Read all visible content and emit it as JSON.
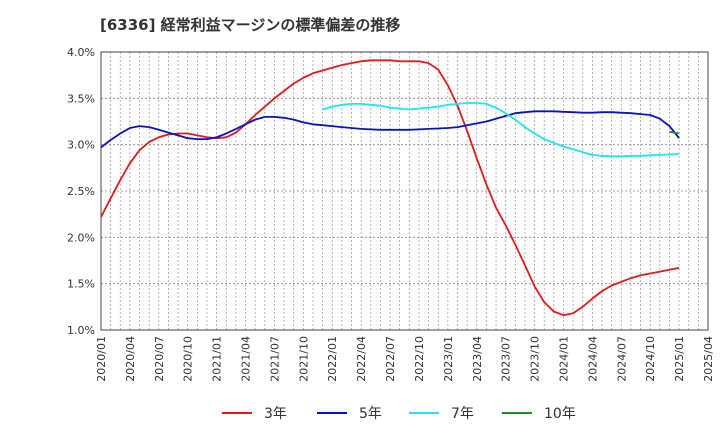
{
  "chart_data": {
    "type": "line",
    "title": "[6336]  経常利益マージンの標準偏差の推移",
    "xlabel": "",
    "ylabel": "",
    "ylim": [
      1.0,
      4.0
    ],
    "y_ticks": [
      "1.0%",
      "1.5%",
      "2.0%",
      "2.5%",
      "3.0%",
      "3.5%",
      "4.0%"
    ],
    "y_tick_values": [
      1.0,
      1.5,
      2.0,
      2.5,
      3.0,
      3.5,
      4.0
    ],
    "x_ticks": [
      "2020/01",
      "2020/04",
      "2020/07",
      "2020/10",
      "2021/01",
      "2021/04",
      "2021/07",
      "2021/10",
      "2022/01",
      "2022/04",
      "2022/07",
      "2022/10",
      "2023/01",
      "2023/04",
      "2023/07",
      "2023/10",
      "2024/01",
      "2024/04",
      "2024/07",
      "2024/10",
      "2025/01",
      "2025/04"
    ],
    "x_start": "2020/01",
    "x_end": "2025/04",
    "grid": true,
    "legend_position": "bottom",
    "series": [
      {
        "name": "3年",
        "color": "#e31a1c",
        "points": [
          [
            "2020/01",
            2.22
          ],
          [
            "2020/02",
            2.42
          ],
          [
            "2020/03",
            2.62
          ],
          [
            "2020/04",
            2.8
          ],
          [
            "2020/05",
            2.94
          ],
          [
            "2020/06",
            3.03
          ],
          [
            "2020/07",
            3.08
          ],
          [
            "2020/08",
            3.11
          ],
          [
            "2020/09",
            3.12
          ],
          [
            "2020/10",
            3.12
          ],
          [
            "2020/11",
            3.1
          ],
          [
            "2020/12",
            3.08
          ],
          [
            "2021/01",
            3.07
          ],
          [
            "2021/02",
            3.08
          ],
          [
            "2021/03",
            3.13
          ],
          [
            "2021/04",
            3.22
          ],
          [
            "2021/05",
            3.32
          ],
          [
            "2021/06",
            3.41
          ],
          [
            "2021/07",
            3.5
          ],
          [
            "2021/08",
            3.58
          ],
          [
            "2021/09",
            3.66
          ],
          [
            "2021/10",
            3.72
          ],
          [
            "2021/11",
            3.77
          ],
          [
            "2021/12",
            3.8
          ],
          [
            "2022/01",
            3.83
          ],
          [
            "2022/02",
            3.86
          ],
          [
            "2022/03",
            3.88
          ],
          [
            "2022/04",
            3.9
          ],
          [
            "2022/05",
            3.91
          ],
          [
            "2022/06",
            3.91
          ],
          [
            "2022/07",
            3.91
          ],
          [
            "2022/08",
            3.9
          ],
          [
            "2022/09",
            3.9
          ],
          [
            "2022/10",
            3.9
          ],
          [
            "2022/11",
            3.88
          ],
          [
            "2022/12",
            3.81
          ],
          [
            "2023/01",
            3.64
          ],
          [
            "2023/02",
            3.42
          ],
          [
            "2023/03",
            3.15
          ],
          [
            "2023/04",
            2.85
          ],
          [
            "2023/05",
            2.57
          ],
          [
            "2023/06",
            2.32
          ],
          [
            "2023/07",
            2.13
          ],
          [
            "2023/08",
            1.92
          ],
          [
            "2023/09",
            1.7
          ],
          [
            "2023/10",
            1.47
          ],
          [
            "2023/11",
            1.3
          ],
          [
            "2023/12",
            1.2
          ],
          [
            "2024/01",
            1.16
          ],
          [
            "2024/02",
            1.18
          ],
          [
            "2024/03",
            1.25
          ],
          [
            "2024/04",
            1.34
          ],
          [
            "2024/05",
            1.42
          ],
          [
            "2024/06",
            1.48
          ],
          [
            "2024/07",
            1.52
          ],
          [
            "2024/08",
            1.56
          ],
          [
            "2024/09",
            1.59
          ],
          [
            "2024/10",
            1.61
          ],
          [
            "2024/11",
            1.63
          ],
          [
            "2024/12",
            1.65
          ],
          [
            "2025/01",
            1.67
          ]
        ]
      },
      {
        "name": "5年",
        "color": "#0a10c8",
        "points": [
          [
            "2020/01",
            2.97
          ],
          [
            "2020/02",
            3.05
          ],
          [
            "2020/03",
            3.12
          ],
          [
            "2020/04",
            3.18
          ],
          [
            "2020/05",
            3.2
          ],
          [
            "2020/06",
            3.19
          ],
          [
            "2020/07",
            3.16
          ],
          [
            "2020/08",
            3.13
          ],
          [
            "2020/09",
            3.1
          ],
          [
            "2020/10",
            3.07
          ],
          [
            "2020/11",
            3.06
          ],
          [
            "2020/12",
            3.06
          ],
          [
            "2021/01",
            3.08
          ],
          [
            "2021/02",
            3.12
          ],
          [
            "2021/03",
            3.17
          ],
          [
            "2021/04",
            3.22
          ],
          [
            "2021/05",
            3.27
          ],
          [
            "2021/06",
            3.3
          ],
          [
            "2021/07",
            3.3
          ],
          [
            "2021/08",
            3.29
          ],
          [
            "2021/09",
            3.27
          ],
          [
            "2021/10",
            3.24
          ],
          [
            "2021/11",
            3.22
          ],
          [
            "2021/12",
            3.21
          ],
          [
            "2022/01",
            3.2
          ],
          [
            "2022/02",
            3.19
          ],
          [
            "2022/03",
            3.18
          ],
          [
            "2022/04",
            3.17
          ],
          [
            "2022/05",
            3.165
          ],
          [
            "2022/06",
            3.16
          ],
          [
            "2022/07",
            3.16
          ],
          [
            "2022/08",
            3.16
          ],
          [
            "2022/09",
            3.16
          ],
          [
            "2022/10",
            3.165
          ],
          [
            "2022/11",
            3.17
          ],
          [
            "2022/12",
            3.175
          ],
          [
            "2023/01",
            3.18
          ],
          [
            "2023/02",
            3.19
          ],
          [
            "2023/03",
            3.21
          ],
          [
            "2023/04",
            3.23
          ],
          [
            "2023/05",
            3.25
          ],
          [
            "2023/06",
            3.28
          ],
          [
            "2023/07",
            3.31
          ],
          [
            "2023/08",
            3.34
          ],
          [
            "2023/09",
            3.35
          ],
          [
            "2023/10",
            3.36
          ],
          [
            "2023/11",
            3.36
          ],
          [
            "2023/12",
            3.36
          ],
          [
            "2024/01",
            3.355
          ],
          [
            "2024/02",
            3.35
          ],
          [
            "2024/03",
            3.345
          ],
          [
            "2024/04",
            3.345
          ],
          [
            "2024/05",
            3.35
          ],
          [
            "2024/06",
            3.35
          ],
          [
            "2024/07",
            3.345
          ],
          [
            "2024/08",
            3.34
          ],
          [
            "2024/09",
            3.33
          ],
          [
            "2024/10",
            3.32
          ],
          [
            "2024/11",
            3.28
          ],
          [
            "2024/12",
            3.2
          ],
          [
            "2025/01",
            3.07
          ]
        ]
      },
      {
        "name": "7年",
        "color": "#19e8f0",
        "points": [
          [
            "2021/12",
            3.38
          ],
          [
            "2022/01",
            3.41
          ],
          [
            "2022/02",
            3.43
          ],
          [
            "2022/03",
            3.44
          ],
          [
            "2022/04",
            3.44
          ],
          [
            "2022/05",
            3.43
          ],
          [
            "2022/06",
            3.42
          ],
          [
            "2022/07",
            3.4
          ],
          [
            "2022/08",
            3.39
          ],
          [
            "2022/09",
            3.38
          ],
          [
            "2022/10",
            3.39
          ],
          [
            "2022/11",
            3.4
          ],
          [
            "2022/12",
            3.41
          ],
          [
            "2023/01",
            3.43
          ],
          [
            "2023/02",
            3.44
          ],
          [
            "2023/03",
            3.45
          ],
          [
            "2023/04",
            3.45
          ],
          [
            "2023/05",
            3.44
          ],
          [
            "2023/06",
            3.4
          ],
          [
            "2023/07",
            3.34
          ],
          [
            "2023/08",
            3.27
          ],
          [
            "2023/09",
            3.19
          ],
          [
            "2023/10",
            3.12
          ],
          [
            "2023/11",
            3.06
          ],
          [
            "2023/12",
            3.02
          ],
          [
            "2024/01",
            2.98
          ],
          [
            "2024/02",
            2.95
          ],
          [
            "2024/03",
            2.92
          ],
          [
            "2024/04",
            2.89
          ],
          [
            "2024/05",
            2.88
          ],
          [
            "2024/06",
            2.875
          ],
          [
            "2024/07",
            2.875
          ],
          [
            "2024/08",
            2.88
          ],
          [
            "2024/09",
            2.88
          ],
          [
            "2024/10",
            2.885
          ],
          [
            "2024/11",
            2.89
          ],
          [
            "2024/12",
            2.895
          ],
          [
            "2025/01",
            2.9
          ]
        ]
      },
      {
        "name": "10年",
        "color": "#228b22",
        "points": [
          [
            "2024/12",
            3.14
          ],
          [
            "2025/01",
            3.12
          ]
        ]
      }
    ]
  }
}
